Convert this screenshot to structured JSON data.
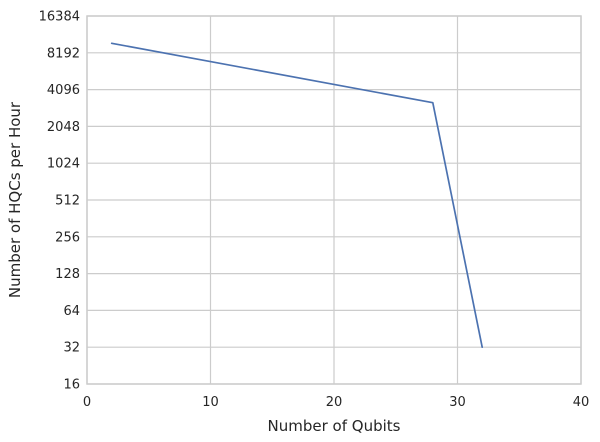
{
  "chart_data": {
    "type": "line",
    "xlabel": "Number of Qubits",
    "ylabel": "Number of HQCs per Hour",
    "xlim": [
      0,
      40
    ],
    "ylim": [
      16,
      16384
    ],
    "yscale": "log2",
    "grid": true,
    "x_ticks": [
      "0",
      "10",
      "20",
      "30",
      "40"
    ],
    "y_ticks": [
      "16",
      "32",
      "64",
      "128",
      "256",
      "512",
      "1024",
      "2048",
      "4096",
      "8192",
      "16384"
    ],
    "series": [
      {
        "color": "#4c72b0",
        "x": [
          2,
          28,
          32
        ],
        "y": [
          9800,
          3200,
          32
        ]
      }
    ]
  }
}
